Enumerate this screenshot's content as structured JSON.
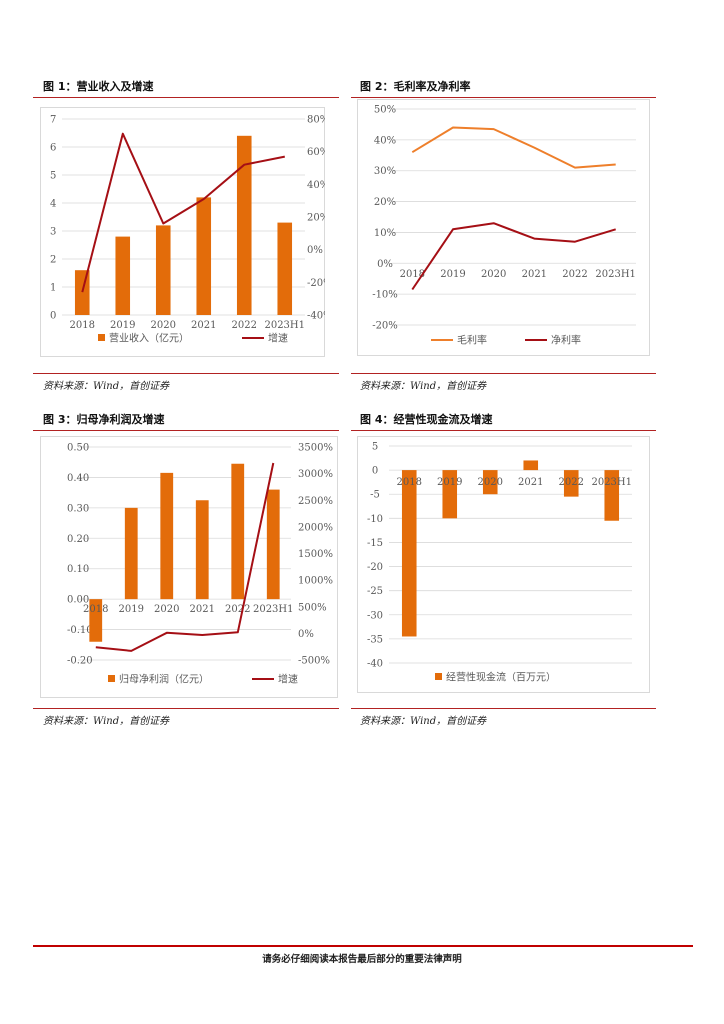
{
  "colors": {
    "orange": "#E36C0A",
    "orange_light": "#EE7F2B",
    "darkred": "#A50F15",
    "rule": "#b22222"
  },
  "figures": [
    {
      "title": "图 1：营业收入及增速",
      "source": "资料来源：Wind，首创证券"
    },
    {
      "title": "图 2：毛利率及净利率",
      "source": "资料来源：Wind，首创证券"
    },
    {
      "title": "图 3：归母净利润及增速",
      "source": "资料来源：Wind，首创证券"
    },
    {
      "title": "图 4：经营性现金流及增速",
      "source": "资料来源：Wind，首创证券"
    }
  ],
  "footer": "请务必仔细阅读本报告最后部分的重要法律声明",
  "chart_data": [
    {
      "type": "bar",
      "title": "营业收入及增速",
      "categories": [
        "2018",
        "2019",
        "2020",
        "2021",
        "2022",
        "2023H1"
      ],
      "series": [
        {
          "name": "营业收入（亿元）",
          "type": "bar",
          "axis": "left",
          "values": [
            1.6,
            2.8,
            3.2,
            4.2,
            6.4,
            3.3
          ]
        },
        {
          "name": "增速",
          "type": "line",
          "axis": "right",
          "values": [
            -26,
            71,
            16,
            31,
            52,
            57
          ]
        }
      ],
      "yleft": {
        "min": 0,
        "max": 7,
        "step": 1,
        "decimals": 0,
        "suffix": ""
      },
      "yright": {
        "min": -40,
        "max": 80,
        "step": 20,
        "decimals": 0,
        "suffix": "%"
      },
      "legend_position": "bottom"
    },
    {
      "type": "line",
      "title": "毛利率及净利率",
      "categories": [
        "2018",
        "2019",
        "2020",
        "2021",
        "2022",
        "2023H1"
      ],
      "series": [
        {
          "name": "毛利率",
          "type": "line",
          "color": "orange_light",
          "values": [
            36,
            44,
            43.5,
            37.5,
            31,
            32
          ]
        },
        {
          "name": "净利率",
          "type": "line",
          "color": "darkred",
          "values": [
            -8.5,
            11,
            13,
            8,
            7,
            11
          ]
        }
      ],
      "yleft": {
        "min": -20,
        "max": 50,
        "step": 10,
        "decimals": 0,
        "suffix": "%"
      },
      "legend_position": "bottom"
    },
    {
      "type": "bar",
      "title": "归母净利润及增速",
      "categories": [
        "2018",
        "2019",
        "2020",
        "2021",
        "2022",
        "2023H1"
      ],
      "series": [
        {
          "name": "归母净利润（亿元）",
          "type": "bar",
          "axis": "left",
          "values": [
            -0.14,
            0.3,
            0.415,
            0.325,
            0.445,
            0.36
          ]
        },
        {
          "name": "增速",
          "type": "line",
          "axis": "right",
          "values": [
            -260,
            -330,
            10,
            -30,
            20,
            3200
          ]
        }
      ],
      "yleft": {
        "min": -0.2,
        "max": 0.5,
        "step": 0.1,
        "decimals": 2,
        "suffix": ""
      },
      "yright": {
        "min": -500,
        "max": 3500,
        "step": 500,
        "decimals": 0,
        "suffix": "%"
      },
      "legend_position": "bottom"
    },
    {
      "type": "bar",
      "title": "经营性现金流",
      "categories": [
        "2018",
        "2019",
        "2020",
        "2021",
        "2022",
        "2023H1"
      ],
      "series": [
        {
          "name": "经营性现金流（百万元）",
          "type": "bar",
          "axis": "left",
          "values": [
            -34.5,
            -10,
            -5,
            2,
            -5.5,
            -10.5
          ]
        }
      ],
      "yleft": {
        "min": -40,
        "max": 5,
        "step": 5,
        "decimals": 0,
        "suffix": ""
      },
      "legend_position": "bottom"
    }
  ]
}
